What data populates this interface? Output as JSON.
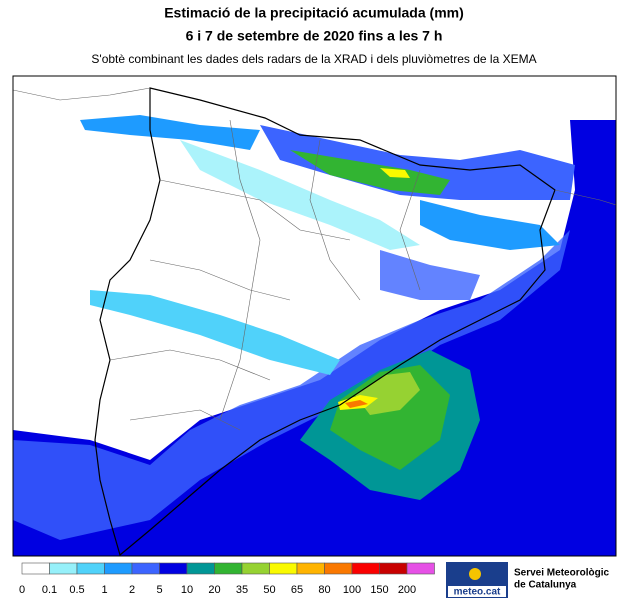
{
  "header": {
    "title": "Estimació de la precipitació acumulada (mm)",
    "period": "6 i 7 de setembre de 2020 fins a les 7 h",
    "description": "S'obtè combinant les dades dels radars de la XRAD i dels pluviòmetres de la XEMA"
  },
  "legend": {
    "items": [
      {
        "label": "0",
        "color": "#ffffff"
      },
      {
        "label": "0.1",
        "color": "#96f0fa"
      },
      {
        "label": "0.5",
        "color": "#50d2fa"
      },
      {
        "label": "1",
        "color": "#1e9bff"
      },
      {
        "label": "2",
        "color": "#3c64ff"
      },
      {
        "label": "5",
        "color": "#0000e1"
      },
      {
        "label": "10",
        "color": "#009696"
      },
      {
        "label": "20",
        "color": "#32b432"
      },
      {
        "label": "35",
        "color": "#96d232"
      },
      {
        "label": "50",
        "color": "#fafa00"
      },
      {
        "label": "65",
        "color": "#ffb400"
      },
      {
        "label": "80",
        "color": "#fa7800"
      },
      {
        "label": "100",
        "color": "#fa0000"
      },
      {
        "label": "150",
        "color": "#c80000"
      },
      {
        "label": "200",
        "color": "#e650e6"
      }
    ]
  },
  "logo": {
    "brand": "meteo.cat",
    "agency_line1": "Servei Meteorològic",
    "agency_line2": "de Catalunya"
  }
}
